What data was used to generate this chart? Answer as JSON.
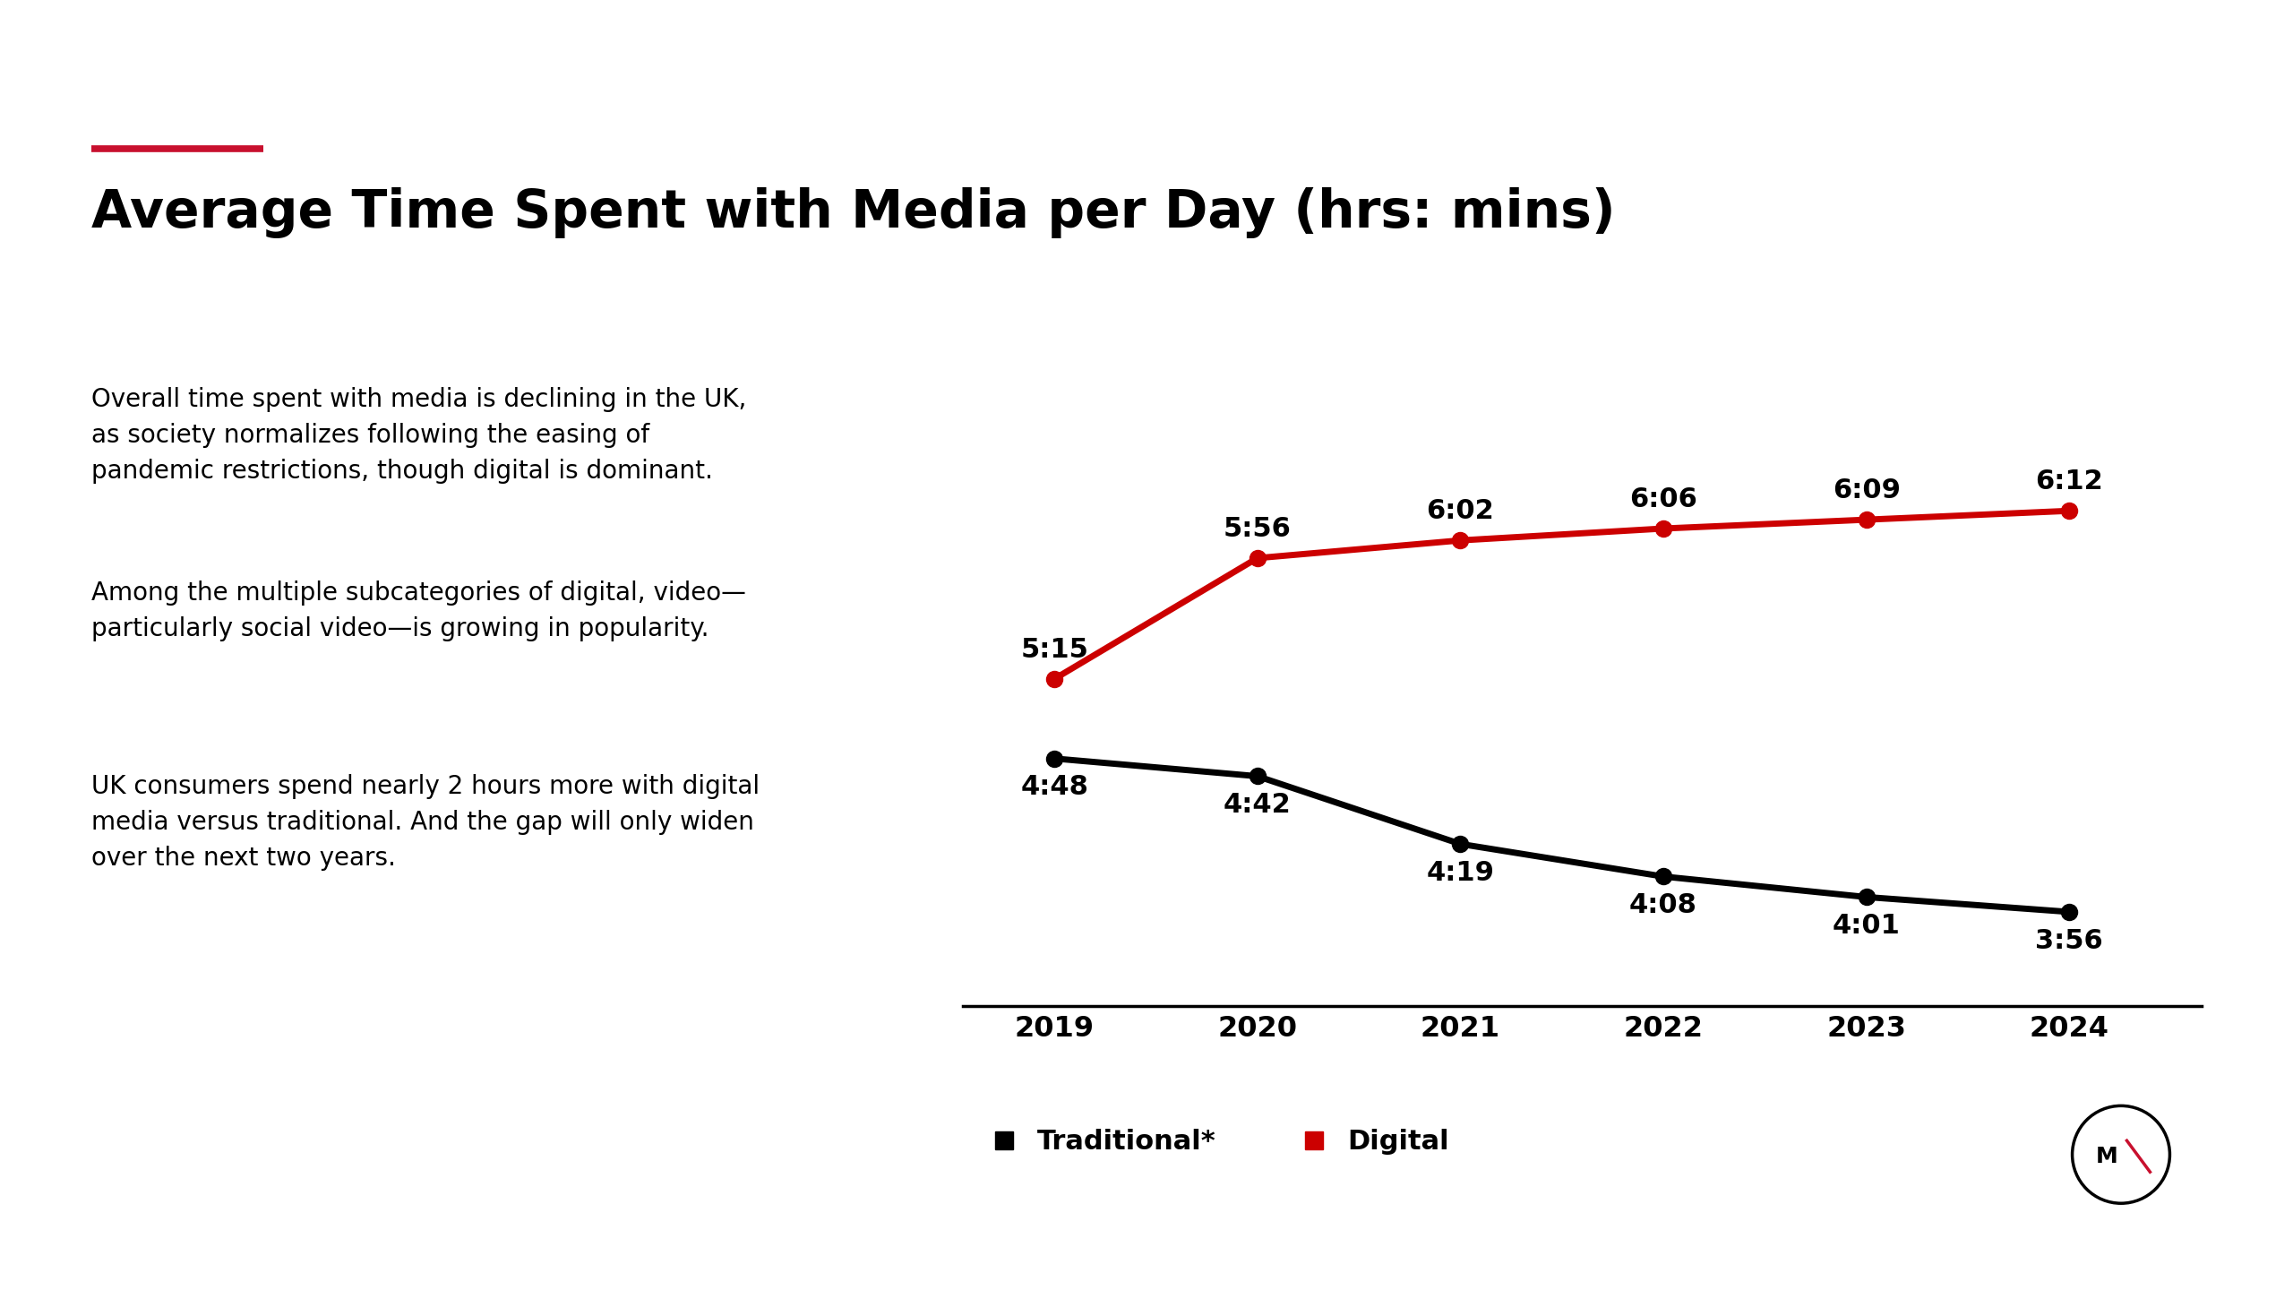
{
  "title": "Average Time Spent with Media per Day (hrs: mins)",
  "title_color": "#000000",
  "title_fontsize": 42,
  "accent_color": "#c8102e",
  "background_color": "#ffffff",
  "years": [
    2019,
    2020,
    2021,
    2022,
    2023,
    2024
  ],
  "digital_labels": [
    "5:15",
    "5:56",
    "6:02",
    "6:06",
    "6:09",
    "6:12"
  ],
  "digital_values": [
    5.25,
    5.933,
    6.033,
    6.1,
    6.15,
    6.2
  ],
  "traditional_labels": [
    "4:48",
    "4:42",
    "4:19",
    "4:08",
    "4:01",
    "3:56"
  ],
  "traditional_values": [
    4.8,
    4.7,
    4.317,
    4.133,
    4.017,
    3.933
  ],
  "digital_color": "#cc0000",
  "traditional_color": "#000000",
  "line_width": 5.0,
  "marker_size": 13,
  "label_fontsize": 22,
  "axis_label_fontsize": 23,
  "body_text": [
    "Overall time spent with media is declining in the UK,\nas society normalizes following the easing of\npandemic restrictions, though digital is dominant.",
    "Among the multiple subcategories of digital, video—\nparticularly social video—is growing in popularity.",
    "UK consumers spend nearly 2 hours more with digital\nmedia versus traditional. And the gap will only widen\nover the next two years."
  ],
  "body_fontsize": 20,
  "legend_traditional": "Traditional*",
  "legend_digital": "Digital",
  "legend_fontsize": 22,
  "ylim": [
    3.4,
    6.9
  ],
  "xlim_left": 2018.55,
  "xlim_right": 2024.65
}
